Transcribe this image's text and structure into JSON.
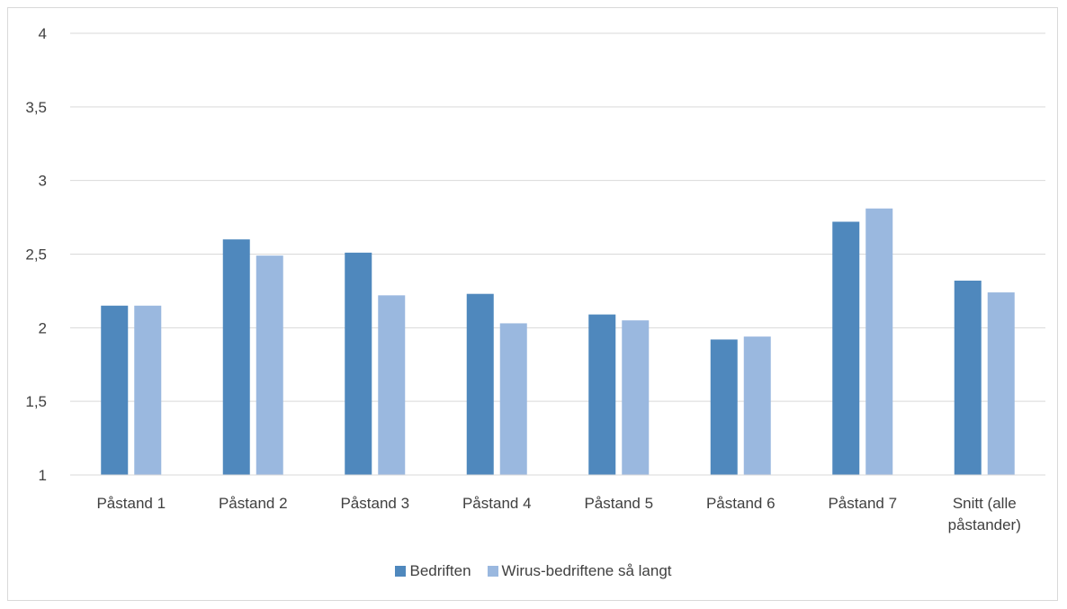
{
  "chart_data": {
    "type": "bar",
    "title": "",
    "xlabel": "",
    "ylabel": "",
    "categories": [
      "Påstand 1",
      "Påstand 2",
      "Påstand 3",
      "Påstand 4",
      "Påstand 5",
      "Påstand 6",
      "Påstand 7",
      "Snitt (alle påstander)"
    ],
    "category_lines": [
      [
        "Påstand 1"
      ],
      [
        "Påstand 2"
      ],
      [
        "Påstand 3"
      ],
      [
        "Påstand 4"
      ],
      [
        "Påstand 5"
      ],
      [
        "Påstand 6"
      ],
      [
        "Påstand 7"
      ],
      [
        "Snitt (alle",
        "påstander)"
      ]
    ],
    "series": [
      {
        "name": "Bedriften",
        "color": "#4f88bd",
        "values": [
          2.15,
          2.6,
          2.51,
          2.23,
          2.09,
          1.92,
          2.72,
          2.32
        ]
      },
      {
        "name": "Wirus-bedriftene så langt",
        "color": "#9ab8df",
        "values": [
          2.15,
          2.49,
          2.22,
          2.03,
          2.05,
          1.94,
          2.81,
          2.24
        ]
      }
    ],
    "ylim": [
      1,
      4
    ],
    "yticks": [
      1,
      1.5,
      2,
      2.5,
      3,
      3.5,
      4
    ],
    "ytick_labels": [
      "1",
      "1,5",
      "2",
      "2,5",
      "3",
      "3,5",
      "4"
    ],
    "grid": true,
    "legend_position": "bottom"
  }
}
